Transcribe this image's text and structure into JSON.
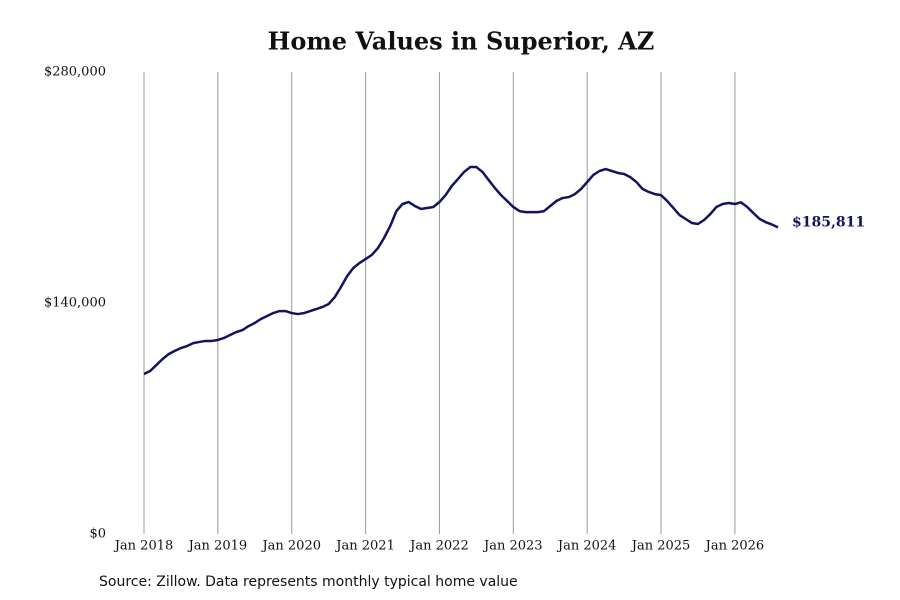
{
  "chart_data": {
    "type": "line",
    "title": "Home Values in Superior, AZ",
    "source": "Source: Zillow. Data represents monthly typical home value",
    "x": [
      "2018-01",
      "2018-02",
      "2018-03",
      "2018-04",
      "2018-05",
      "2018-06",
      "2018-07",
      "2018-08",
      "2018-09",
      "2018-10",
      "2018-11",
      "2018-12",
      "2019-01",
      "2019-02",
      "2019-03",
      "2019-04",
      "2019-05",
      "2019-06",
      "2019-07",
      "2019-08",
      "2019-09",
      "2019-10",
      "2019-11",
      "2019-12",
      "2020-01",
      "2020-02",
      "2020-03",
      "2020-04",
      "2020-05",
      "2020-06",
      "2020-07",
      "2020-08",
      "2020-09",
      "2020-10",
      "2020-11",
      "2020-12",
      "2021-01",
      "2021-02",
      "2021-03",
      "2021-04",
      "2021-05",
      "2021-06",
      "2021-07",
      "2021-08",
      "2021-09",
      "2021-10",
      "2021-11",
      "2021-12",
      "2022-01",
      "2022-02",
      "2022-03",
      "2022-04",
      "2022-05",
      "2022-06",
      "2022-07",
      "2022-08",
      "2022-09",
      "2022-10",
      "2022-11",
      "2022-12",
      "2023-01",
      "2023-02",
      "2023-03",
      "2023-04",
      "2023-05",
      "2023-06",
      "2023-07",
      "2023-08",
      "2023-09",
      "2023-10",
      "2023-11",
      "2023-12",
      "2024-01",
      "2024-02",
      "2024-03",
      "2024-04",
      "2024-05",
      "2024-06",
      "2024-07",
      "2024-08",
      "2024-09",
      "2024-10",
      "2024-11",
      "2024-12",
      "2025-01",
      "2025-02",
      "2025-03",
      "2025-04",
      "2025-05",
      "2025-06",
      "2025-07",
      "2025-08",
      "2025-09",
      "2025-10",
      "2025-11",
      "2025-12",
      "2026-01",
      "2026-02",
      "2026-03",
      "2026-04",
      "2026-05",
      "2026-06",
      "2026-07",
      "2026-08"
    ],
    "series": [
      {
        "name": "Home value",
        "color": "#14135e",
        "values": [
          97000,
          98800,
          102400,
          106000,
          109000,
          111000,
          112700,
          113900,
          115700,
          116400,
          117000,
          117000,
          117600,
          118800,
          120600,
          122400,
          123600,
          126000,
          127900,
          130300,
          132100,
          133900,
          135100,
          135100,
          133900,
          133300,
          133900,
          135100,
          136300,
          137600,
          139400,
          143600,
          149700,
          156300,
          161200,
          164200,
          166600,
          169100,
          173300,
          179400,
          186600,
          195700,
          200000,
          201200,
          198800,
          197000,
          197600,
          198200,
          201200,
          205400,
          210900,
          215100,
          219400,
          222400,
          222400,
          219400,
          214500,
          209700,
          205400,
          201800,
          198200,
          195700,
          195100,
          195100,
          195100,
          195700,
          198800,
          201800,
          203600,
          204200,
          206000,
          209100,
          213300,
          217600,
          220000,
          221200,
          220000,
          218800,
          218200,
          216300,
          213300,
          209100,
          207300,
          206000,
          205400,
          201800,
          197600,
          193300,
          190900,
          188500,
          187900,
          190300,
          193900,
          198200,
          200000,
          200600,
          200000,
          201000,
          198200,
          194500,
          191000,
          189000,
          187600,
          185811
        ],
        "value_labels": [
          null,
          null,
          null,
          null,
          null,
          null,
          null,
          null,
          null,
          null,
          null,
          null,
          null,
          null,
          null,
          null,
          null,
          null,
          null,
          null,
          null,
          null,
          null,
          null,
          null,
          null,
          null,
          null,
          null,
          null,
          null,
          null,
          null,
          null,
          null,
          null,
          null,
          null,
          null,
          null,
          null,
          null,
          null,
          null,
          null,
          null,
          null,
          null,
          null,
          null,
          null,
          null,
          null,
          null,
          null,
          null,
          null,
          null,
          null,
          null,
          null,
          null,
          null,
          null,
          null,
          null,
          null,
          null,
          null,
          null,
          null,
          null,
          null,
          null,
          null,
          null,
          null,
          null,
          null,
          null,
          null,
          null,
          null,
          null,
          null,
          null,
          null,
          null,
          null,
          null,
          null,
          null,
          null,
          null,
          null,
          null,
          null,
          null,
          null,
          null,
          null,
          null,
          null,
          "$185,811"
        ]
      }
    ],
    "xlim": [
      "2018-01",
      "2026-08"
    ],
    "xticks": [
      {
        "value": "2018-01",
        "label": "Jan 2018"
      },
      {
        "value": "2019-01",
        "label": "Jan 2019"
      },
      {
        "value": "2020-01",
        "label": "Jan 2020"
      },
      {
        "value": "2021-01",
        "label": "Jan 2021"
      },
      {
        "value": "2022-01",
        "label": "Jan 2022"
      },
      {
        "value": "2023-01",
        "label": "Jan 2023"
      },
      {
        "value": "2024-01",
        "label": "Jan 2024"
      },
      {
        "value": "2025-01",
        "label": "Jan 2025"
      },
      {
        "value": "2026-01",
        "label": "Jan 2026"
      }
    ],
    "ylim": [
      0,
      280000
    ],
    "yticks": [
      {
        "value": 0,
        "label": "$0"
      },
      {
        "value": 140000,
        "label": "$140,000"
      },
      {
        "value": 280000,
        "label": "$280,000"
      }
    ],
    "grid": "x"
  }
}
